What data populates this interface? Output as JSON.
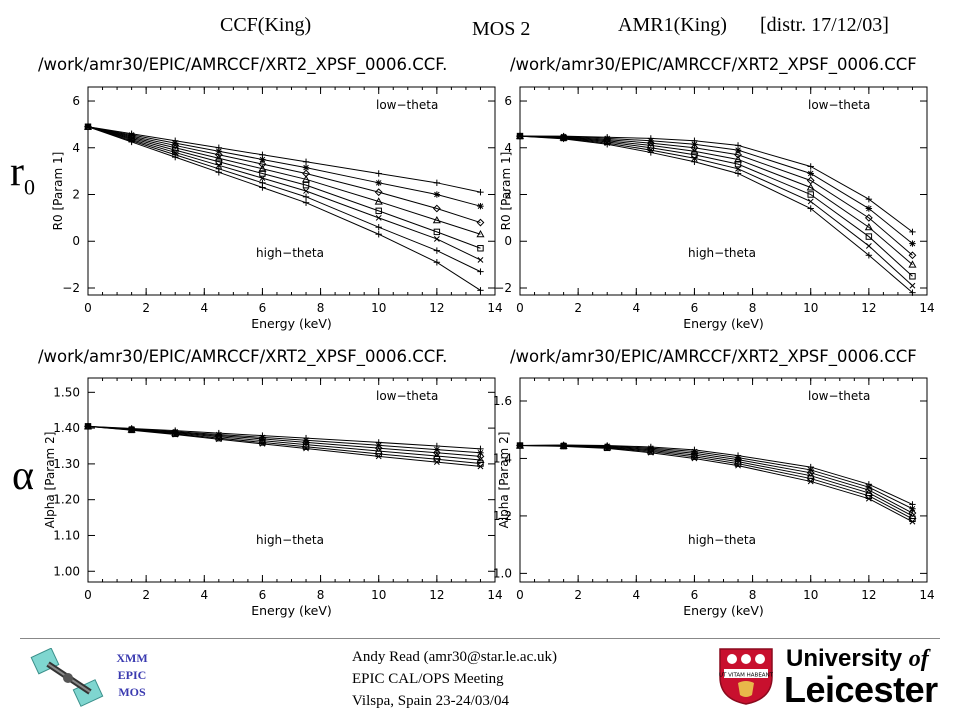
{
  "header": {
    "left": "CCF(King)",
    "center": "MOS 2",
    "right": "AMR1(King)",
    "distr": "[distr. 17/12/03]"
  },
  "row_symbols": {
    "r_main": "r",
    "r_sub": "0",
    "alpha": "α"
  },
  "chart_data": [
    {
      "type": "line",
      "file_label": "/work/amr30/EPIC/AMRCCF/XRT2_XPSF_0006.CCF.",
      "xlabel": "Energy (keV)",
      "ylabel": "R0 [Param 1]",
      "xlim": [
        0,
        14
      ],
      "ylim": [
        -2.3,
        6.6
      ],
      "xticks": [
        0,
        2,
        4,
        6,
        8,
        10,
        12,
        14
      ],
      "yticks": [
        -2,
        0,
        2,
        4,
        6
      ],
      "ytick_labels": [
        "−2",
        "0",
        "2",
        "4",
        "6"
      ],
      "annotations": [
        "low−theta",
        "high−theta"
      ],
      "x": [
        0,
        1.5,
        3,
        4.5,
        6,
        7.5,
        10,
        12,
        13.5
      ],
      "series": [
        {
          "marker": "plus",
          "values": [
            4.9,
            4.6,
            4.3,
            4.0,
            3.7,
            3.4,
            2.9,
            2.5,
            2.1
          ]
        },
        {
          "marker": "asterisk",
          "values": [
            4.9,
            4.55,
            4.2,
            3.85,
            3.5,
            3.15,
            2.5,
            2.0,
            1.5
          ]
        },
        {
          "marker": "diamond",
          "values": [
            4.9,
            4.5,
            4.1,
            3.7,
            3.3,
            2.9,
            2.1,
            1.4,
            0.8
          ]
        },
        {
          "marker": "triangle",
          "values": [
            4.9,
            4.45,
            4.0,
            3.55,
            3.1,
            2.65,
            1.7,
            0.9,
            0.3
          ]
        },
        {
          "marker": "square",
          "values": [
            4.9,
            4.4,
            3.9,
            3.4,
            2.9,
            2.4,
            1.3,
            0.4,
            -0.3
          ]
        },
        {
          "marker": "cross",
          "values": [
            4.9,
            4.35,
            3.8,
            3.25,
            2.7,
            2.15,
            1.0,
            0.1,
            -0.8
          ]
        },
        {
          "marker": "plus",
          "values": [
            4.9,
            4.3,
            3.7,
            3.1,
            2.5,
            1.9,
            0.6,
            -0.4,
            -1.3
          ]
        },
        {
          "marker": "plus",
          "values": [
            4.9,
            4.25,
            3.6,
            2.95,
            2.3,
            1.65,
            0.3,
            -0.9,
            -2.1
          ]
        }
      ]
    },
    {
      "type": "line",
      "file_label": "/work/amr30/EPIC/AMRCCF/XRT2_XPSF_0006.CCF",
      "xlabel": "Energy (keV)",
      "ylabel": "R0 [Param 1]",
      "xlim": [
        0,
        14
      ],
      "ylim": [
        -2.3,
        6.6
      ],
      "xticks": [
        0,
        2,
        4,
        6,
        8,
        10,
        12,
        14
      ],
      "yticks": [
        -2,
        0,
        2,
        4,
        6
      ],
      "ytick_labels": [
        "−2",
        "0",
        "2",
        "4",
        "6"
      ],
      "annotations": [
        "low−theta",
        "high−theta"
      ],
      "x": [
        0,
        1.5,
        3,
        4.5,
        6,
        7.5,
        10,
        12,
        13.5
      ],
      "series": [
        {
          "marker": "plus",
          "values": [
            4.5,
            4.5,
            4.45,
            4.4,
            4.3,
            4.1,
            3.2,
            1.8,
            0.4
          ]
        },
        {
          "marker": "asterisk",
          "values": [
            4.5,
            4.48,
            4.4,
            4.3,
            4.15,
            3.9,
            2.9,
            1.4,
            -0.1
          ]
        },
        {
          "marker": "diamond",
          "values": [
            4.5,
            4.46,
            4.35,
            4.2,
            4.0,
            3.7,
            2.6,
            1.0,
            -0.6
          ]
        },
        {
          "marker": "triangle",
          "values": [
            4.5,
            4.44,
            4.3,
            4.1,
            3.85,
            3.5,
            2.3,
            0.6,
            -1.0
          ]
        },
        {
          "marker": "square",
          "values": [
            4.5,
            4.42,
            4.25,
            4.0,
            3.7,
            3.3,
            2.0,
            0.2,
            -1.5
          ]
        },
        {
          "marker": "cross",
          "values": [
            4.5,
            4.4,
            4.2,
            3.9,
            3.55,
            3.1,
            1.7,
            -0.2,
            -1.9
          ]
        },
        {
          "marker": "plus",
          "values": [
            4.5,
            4.38,
            4.15,
            3.8,
            3.4,
            2.9,
            1.4,
            -0.6,
            -2.2
          ]
        }
      ]
    },
    {
      "type": "line",
      "file_label": "/work/amr30/EPIC/AMRCCF/XRT2_XPSF_0006.CCF.",
      "xlabel": "Energy (keV)",
      "ylabel": "Alpha [Param 2]",
      "xlim": [
        0,
        14
      ],
      "ylim": [
        0.97,
        1.54
      ],
      "xticks": [
        0,
        2,
        4,
        6,
        8,
        10,
        12,
        14
      ],
      "yticks": [
        1.0,
        1.1,
        1.2,
        1.3,
        1.4,
        1.5
      ],
      "ytick_labels": [
        "1.00",
        "1.10",
        "1.20",
        "1.30",
        "1.40",
        "1.50"
      ],
      "annotations": [
        "low−theta",
        "high−theta"
      ],
      "x": [
        0,
        1.5,
        3,
        4.5,
        6,
        7.5,
        10,
        12,
        13.5
      ],
      "series": [
        {
          "marker": "plus",
          "values": [
            1.405,
            1.399,
            1.393,
            1.386,
            1.379,
            1.372,
            1.36,
            1.35,
            1.342
          ]
        },
        {
          "marker": "asterisk",
          "values": [
            1.405,
            1.398,
            1.39,
            1.382,
            1.374,
            1.366,
            1.352,
            1.34,
            1.331
          ]
        },
        {
          "marker": "diamond",
          "values": [
            1.405,
            1.397,
            1.388,
            1.379,
            1.37,
            1.36,
            1.344,
            1.331,
            1.321
          ]
        },
        {
          "marker": "triangle",
          "values": [
            1.405,
            1.396,
            1.386,
            1.376,
            1.365,
            1.354,
            1.336,
            1.322,
            1.311
          ]
        },
        {
          "marker": "square",
          "values": [
            1.405,
            1.395,
            1.384,
            1.372,
            1.36,
            1.348,
            1.328,
            1.313,
            1.301
          ]
        },
        {
          "marker": "cross",
          "values": [
            1.405,
            1.394,
            1.382,
            1.369,
            1.356,
            1.343,
            1.321,
            1.305,
            1.293
          ]
        }
      ]
    },
    {
      "type": "line",
      "file_label": "/work/amr30/EPIC/AMRCCF/XRT2_XPSF_0006.CCF",
      "xlabel": "Energy (keV)",
      "ylabel": "Alpha [Param 2]",
      "xlim": [
        0,
        14
      ],
      "ylim": [
        0.97,
        1.68
      ],
      "xticks": [
        0,
        2,
        4,
        6,
        8,
        10,
        12,
        14
      ],
      "yticks": [
        1.0,
        1.2,
        1.4,
        1.6
      ],
      "ytick_labels": [
        "1.0",
        "1.2",
        "1.4",
        "1.6"
      ],
      "annotations": [
        "low−theta",
        "high−theta"
      ],
      "x": [
        0,
        1.5,
        3,
        4.5,
        6,
        7.5,
        10,
        12,
        13.5
      ],
      "series": [
        {
          "marker": "plus",
          "values": [
            1.445,
            1.447,
            1.445,
            1.44,
            1.43,
            1.41,
            1.37,
            1.31,
            1.24
          ]
        },
        {
          "marker": "asterisk",
          "values": [
            1.445,
            1.446,
            1.443,
            1.436,
            1.424,
            1.403,
            1.36,
            1.3,
            1.225
          ]
        },
        {
          "marker": "diamond",
          "values": [
            1.445,
            1.445,
            1.441,
            1.432,
            1.418,
            1.396,
            1.35,
            1.29,
            1.21
          ]
        },
        {
          "marker": "triangle",
          "values": [
            1.445,
            1.444,
            1.439,
            1.428,
            1.412,
            1.389,
            1.34,
            1.28,
            1.2
          ]
        },
        {
          "marker": "square",
          "values": [
            1.445,
            1.443,
            1.437,
            1.424,
            1.406,
            1.382,
            1.33,
            1.27,
            1.19
          ]
        },
        {
          "marker": "cross",
          "values": [
            1.445,
            1.442,
            1.435,
            1.42,
            1.4,
            1.375,
            1.32,
            1.26,
            1.18
          ]
        }
      ]
    }
  ],
  "footer": {
    "author": "Andy Read (amr30@star.le.ac.uk)",
    "meeting": "EPIC CAL/OPS Meeting",
    "place": "Vilspa, Spain 23-24/03/04",
    "xmm_lines": [
      "XMM",
      "EPIC",
      "MOS"
    ],
    "university_line1": "University",
    "university_of": "of",
    "university_line2": "Leicester",
    "crest_motto": "UT VITAM HABEANT"
  },
  "colors": {
    "line": "#000000",
    "crest_red": "#c8102e",
    "xmm_blue": "#3a3ab0"
  }
}
